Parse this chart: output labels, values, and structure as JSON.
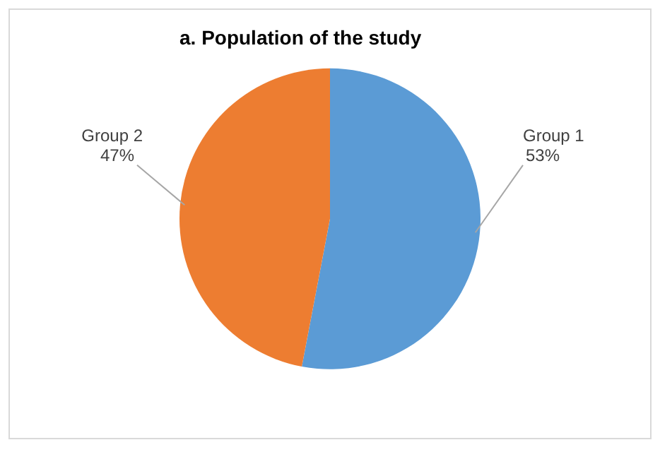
{
  "chart_data": {
    "type": "pie",
    "title": "a. Population of the study",
    "categories": [
      "Group 1",
      "Group 2"
    ],
    "values": [
      53,
      47
    ],
    "colors": [
      "#5b9bd5",
      "#ed7d31"
    ],
    "value_labels": [
      "53%",
      "47%"
    ]
  }
}
